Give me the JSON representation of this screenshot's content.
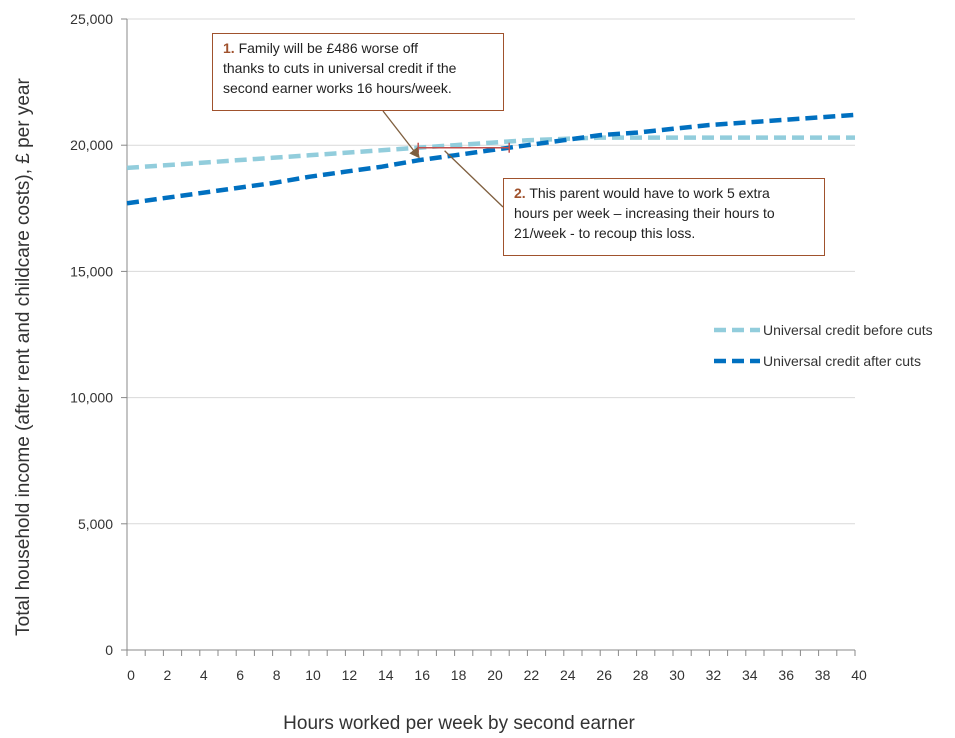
{
  "chart_data": {
    "type": "line",
    "xlabel": "Hours worked per week by second earner",
    "ylabel": "Total household income (after rent and childcare costs), £ per year",
    "xlim": [
      0,
      40
    ],
    "ylim": [
      0,
      25000
    ],
    "x_ticks": [
      "0",
      "2",
      "4",
      "6",
      "8",
      "10",
      "12",
      "14",
      "16",
      "18",
      "20",
      "22",
      "24",
      "26",
      "28",
      "30",
      "32",
      "34",
      "36",
      "38",
      "40"
    ],
    "y_ticks": [
      "0",
      "5,000",
      "10,000",
      "15,000",
      "20,000",
      "25,000"
    ],
    "y_tick_values": [
      0,
      5000,
      10000,
      15000,
      20000,
      25000
    ],
    "grid": "horizontal",
    "legend_position": "right",
    "series": [
      {
        "name": "Universal credit before cuts",
        "color": "#92cddc",
        "x": [
          0,
          2,
          4,
          6,
          8,
          10,
          12,
          14,
          16,
          18,
          20,
          22,
          24,
          26,
          28,
          30,
          32,
          34,
          36,
          38,
          40
        ],
        "values": [
          19100,
          19200,
          19300,
          19400,
          19500,
          19600,
          19700,
          19800,
          19900,
          20000,
          20100,
          20200,
          20250,
          20300,
          20300,
          20300,
          20300,
          20300,
          20300,
          20300,
          20300
        ]
      },
      {
        "name": "Universal credit after cuts",
        "color": "#0070c0",
        "x": [
          0,
          2,
          4,
          6,
          8,
          10,
          12,
          14,
          16,
          18,
          20,
          22,
          24,
          26,
          28,
          30,
          32,
          34,
          36,
          38,
          40
        ],
        "values": [
          17700,
          17900,
          18100,
          18300,
          18500,
          18750,
          18950,
          19150,
          19400,
          19600,
          19800,
          20000,
          20200,
          20400,
          20500,
          20650,
          20800,
          20900,
          21000,
          21100,
          21200
        ]
      }
    ],
    "annotations": [
      {
        "number": "1.",
        "lines": [
          "Family will be £486 worse off",
          "thanks to cuts in universal credit if the",
          "second earner  works 16 hours/week."
        ],
        "target": {
          "x": 16,
          "y": 19400
        }
      },
      {
        "number": "2.",
        "lines": [
          "This parent would have to work 5 extra",
          "hours per week – increasing their hours to",
          "21/week - to recoup this loss."
        ],
        "target": {
          "x": 18,
          "y": 19900
        }
      }
    ],
    "gap_marker": {
      "x_from": 16,
      "x_to": 21,
      "y": 19900
    }
  }
}
